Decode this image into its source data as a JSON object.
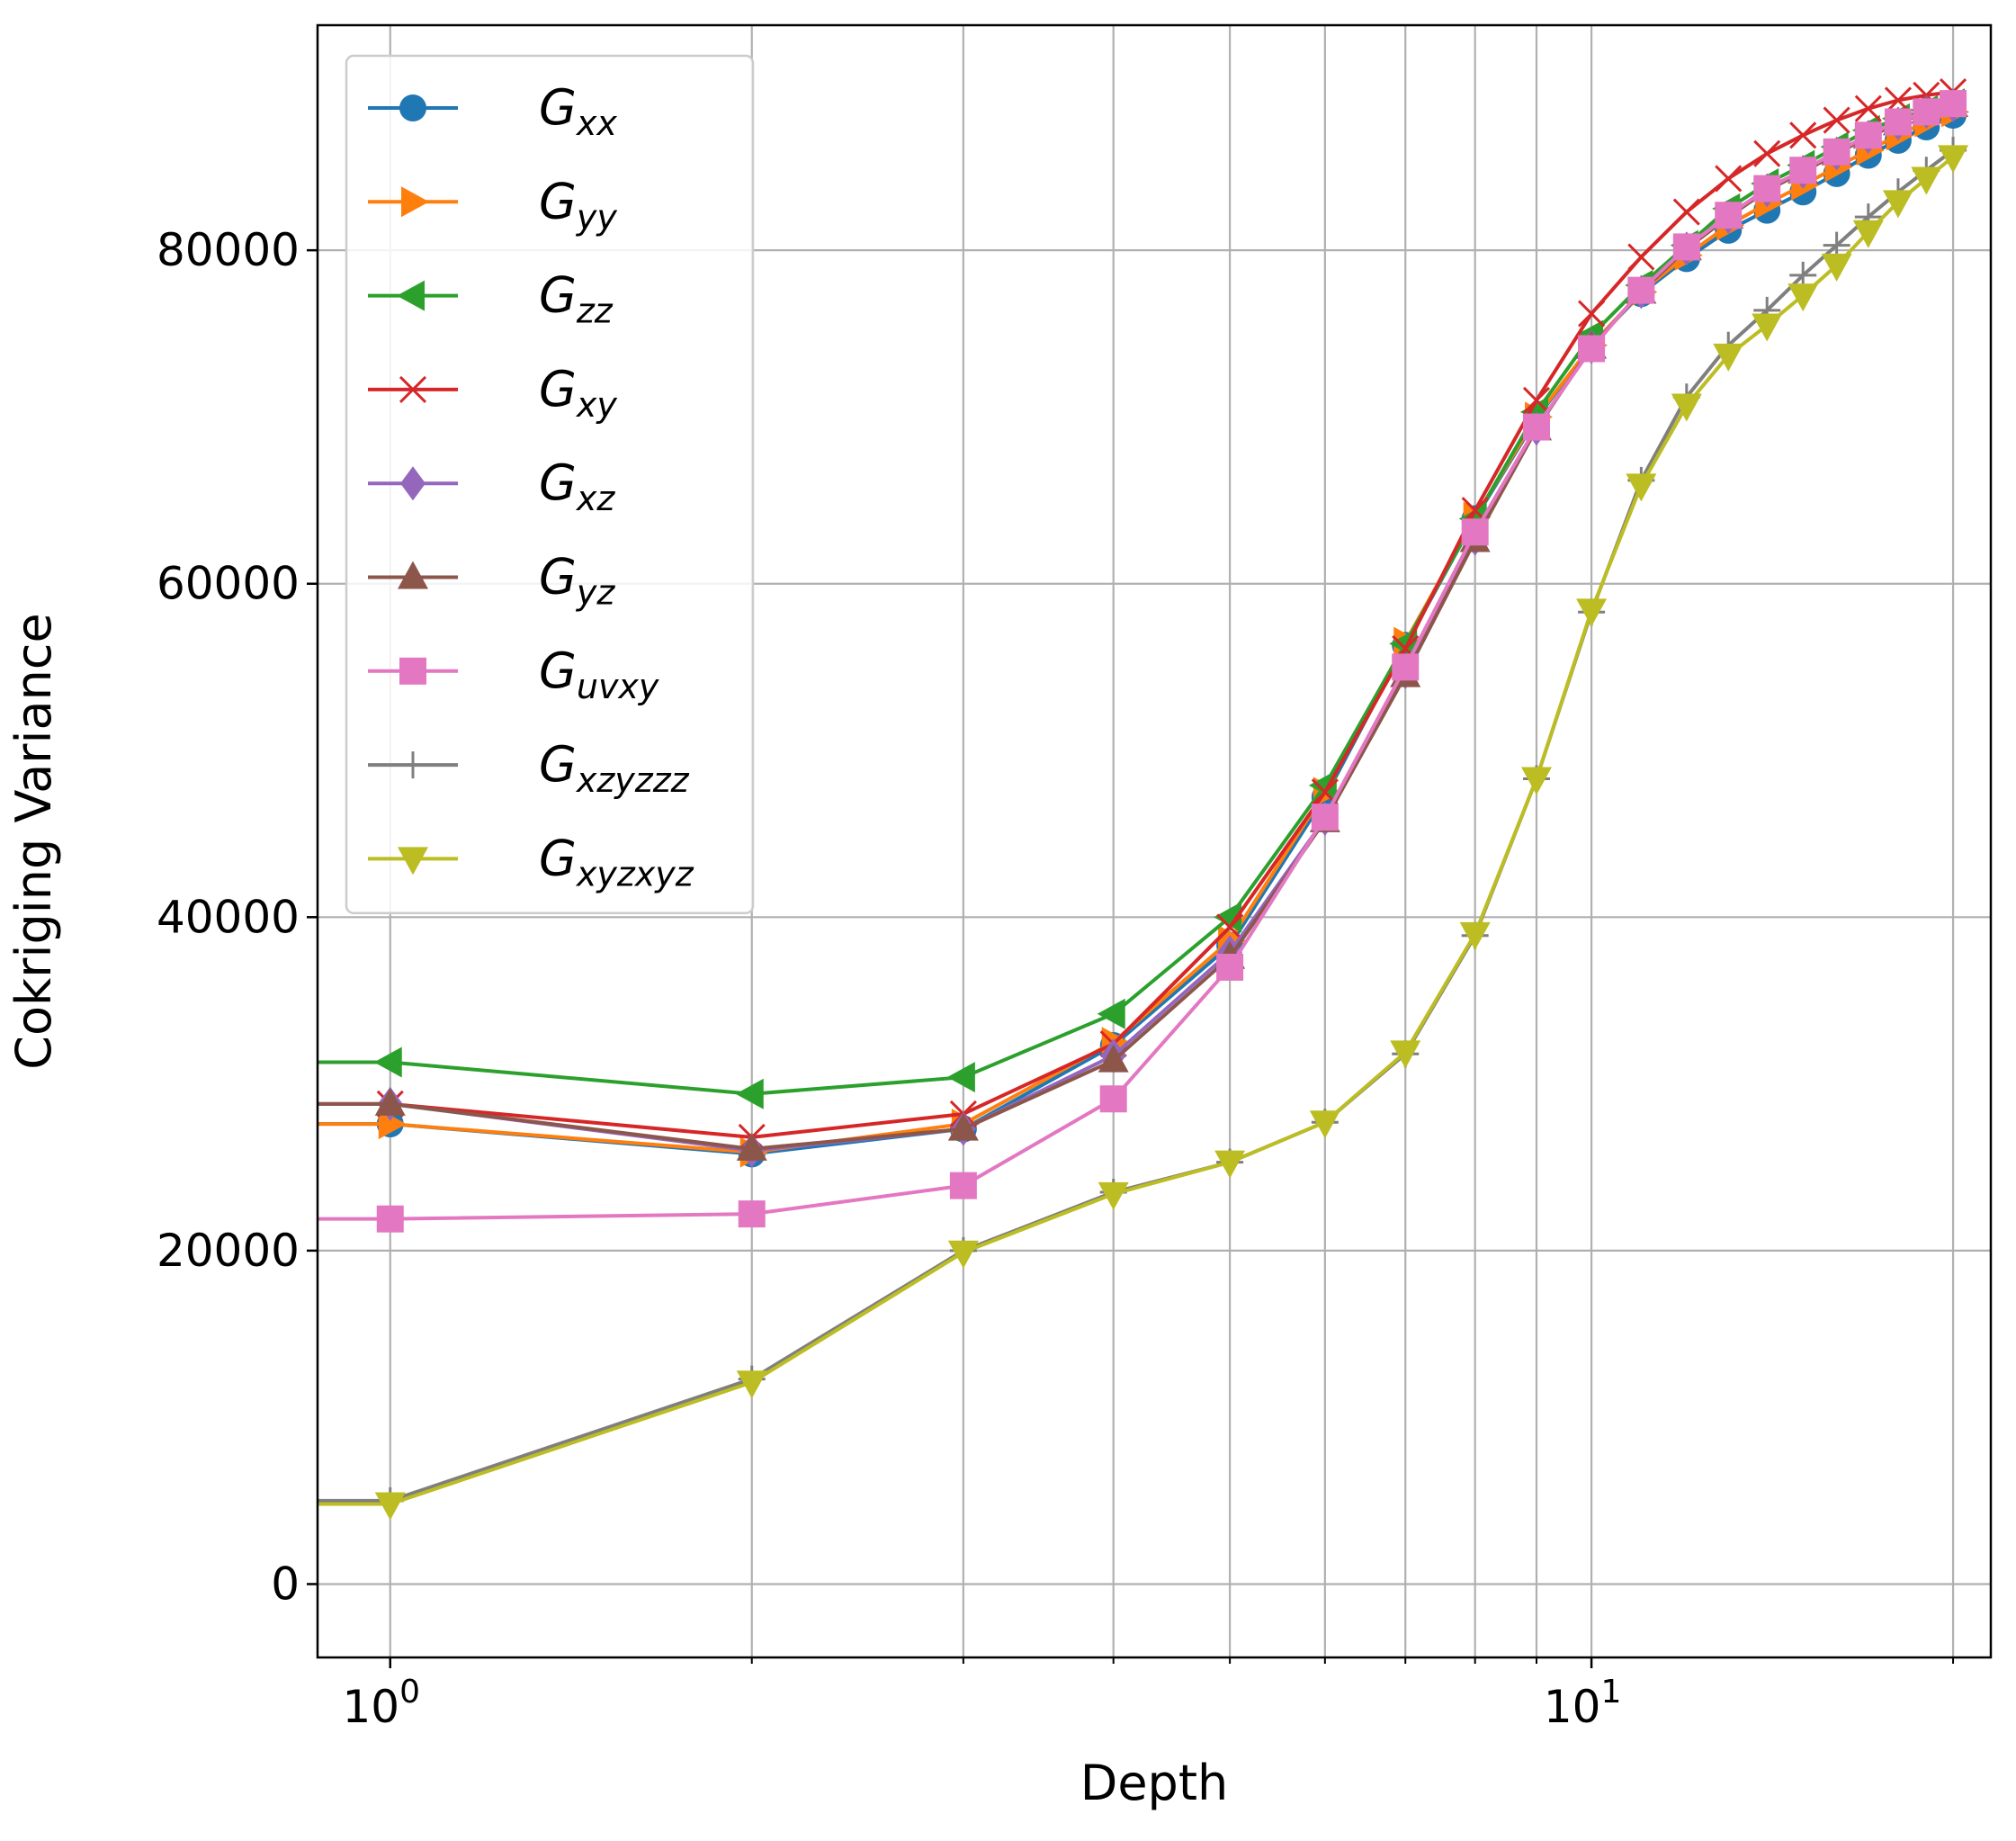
{
  "chart_data": {
    "type": "line",
    "title": "",
    "xlabel": "Depth",
    "ylabel": "Cokriging Variance",
    "xscale": "log",
    "xlim": [
      0.87,
      21.5
    ],
    "ylim": [
      -4400,
      93500
    ],
    "grid": true,
    "legend_position": "top-left",
    "x_major_ticks": [
      {
        "value": 1,
        "base": "10",
        "exp": "0"
      },
      {
        "value": 10,
        "base": "10",
        "exp": "1"
      }
    ],
    "x_minor_ticks": [
      2,
      3,
      4,
      5,
      6,
      7,
      8,
      9,
      20
    ],
    "y_ticks": [
      {
        "value": 0,
        "label": "0"
      },
      {
        "value": 20000,
        "label": "20000"
      },
      {
        "value": 40000,
        "label": "40000"
      },
      {
        "value": 60000,
        "label": "60000"
      },
      {
        "value": 80000,
        "label": "80000"
      }
    ],
    "x": [
      1,
      2,
      3,
      4,
      5,
      6,
      7,
      8,
      9,
      10,
      11,
      12,
      13,
      14,
      15,
      16,
      17,
      18,
      19,
      20
    ],
    "series": [
      {
        "name": "G",
        "sub": "xx",
        "color": "#1f77b4",
        "marker": "circle",
        "values": [
          27600,
          25800,
          27300,
          32300,
          38300,
          47200,
          56300,
          63900,
          69900,
          74300,
          77400,
          79500,
          81200,
          82400,
          83500,
          84600,
          85700,
          86600,
          87400,
          88100
        ]
      },
      {
        "name": "G",
        "sub": "yy",
        "color": "#ff7f0e",
        "marker": "triangle-right",
        "values": [
          27600,
          25900,
          27600,
          32500,
          38600,
          47500,
          56500,
          64000,
          70000,
          74300,
          77500,
          79700,
          81500,
          82800,
          83900,
          85000,
          86000,
          86900,
          87700,
          88300
        ]
      },
      {
        "name": "G",
        "sub": "zz",
        "color": "#2ca02c",
        "marker": "triangle-left",
        "values": [
          31300,
          29400,
          30400,
          34200,
          40000,
          47900,
          56400,
          63900,
          70300,
          74900,
          77900,
          80300,
          82500,
          84000,
          85100,
          86200,
          87200,
          87900,
          88400,
          88800
        ]
      },
      {
        "name": "G",
        "sub": "xy",
        "color": "#d62728",
        "marker": "x",
        "values": [
          28800,
          26800,
          28200,
          32400,
          39400,
          47500,
          56100,
          64400,
          71000,
          76200,
          79600,
          82300,
          84300,
          85800,
          86900,
          87800,
          88500,
          89000,
          89300,
          89500
        ]
      },
      {
        "name": "G",
        "sub": "xz",
        "color": "#9467bd",
        "marker": "diamond",
        "values": [
          28800,
          26000,
          27300,
          31700,
          37900,
          45900,
          54700,
          62700,
          69300,
          74200,
          77500,
          80100,
          82000,
          83600,
          84700,
          85800,
          86800,
          87600,
          88300,
          88700
        ]
      },
      {
        "name": "G",
        "sub": "yz",
        "color": "#8c564b",
        "marker": "triangle-up",
        "values": [
          28800,
          26100,
          27300,
          31400,
          37600,
          45800,
          54500,
          62600,
          69300,
          74200,
          77500,
          80100,
          82000,
          83600,
          84700,
          85800,
          86800,
          87600,
          88300,
          88700
        ]
      },
      {
        "name": "G",
        "sub": "uvxy",
        "color": "#e377c2",
        "marker": "square",
        "values": [
          21900,
          22200,
          23900,
          29100,
          37000,
          46000,
          55000,
          63100,
          69400,
          74100,
          77600,
          80200,
          82100,
          83700,
          84800,
          85900,
          86900,
          87700,
          88300,
          88800
        ]
      },
      {
        "name": "G",
        "sub": "xzyzzz",
        "color": "#7f7f7f",
        "marker": "plus",
        "values": [
          5000,
          12300,
          20000,
          23500,
          25300,
          27700,
          31800,
          38900,
          48300,
          58300,
          66200,
          71200,
          74300,
          76400,
          78500,
          80300,
          82000,
          83500,
          84800,
          86000
        ]
      },
      {
        "name": "G",
        "sub": "xyzxyz",
        "color": "#bcbd22",
        "marker": "triangle-down",
        "values": [
          4800,
          12100,
          19900,
          23400,
          25300,
          27700,
          31900,
          39000,
          48300,
          58400,
          65900,
          70700,
          73700,
          75500,
          77300,
          79100,
          81100,
          82900,
          84300,
          85600
        ]
      }
    ]
  }
}
